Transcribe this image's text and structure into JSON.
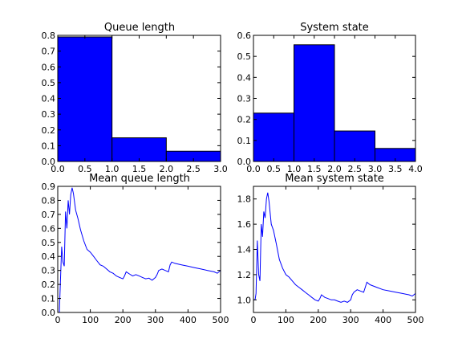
{
  "chart_data": [
    {
      "type": "bar",
      "title": "Queue length",
      "xlim": [
        0,
        3
      ],
      "ylim": [
        0,
        0.8
      ],
      "xticks": [
        "0.0",
        "0.5",
        "1.0",
        "1.5",
        "2.0",
        "2.5",
        "3.0"
      ],
      "yticks": [
        "0.0",
        "0.1",
        "0.2",
        "0.3",
        "0.4",
        "0.5",
        "0.6",
        "0.7",
        "0.8"
      ],
      "bins": [
        [
          0,
          1
        ],
        [
          1,
          2
        ],
        [
          2,
          3
        ]
      ],
      "values": [
        0.79,
        0.15,
        0.065
      ],
      "color": "#0000ff"
    },
    {
      "type": "bar",
      "title": "System state",
      "xlim": [
        0,
        4
      ],
      "ylim": [
        0,
        0.6
      ],
      "xticks": [
        "0.0",
        "0.5",
        "1.0",
        "1.5",
        "2.0",
        "2.5",
        "3.0",
        "3.5",
        "4.0"
      ],
      "yticks": [
        "0.0",
        "0.1",
        "0.2",
        "0.3",
        "0.4",
        "0.5",
        "0.6"
      ],
      "bins": [
        [
          0,
          1
        ],
        [
          1,
          2
        ],
        [
          2,
          3
        ],
        [
          3,
          4
        ]
      ],
      "values": [
        0.23,
        0.555,
        0.145,
        0.062
      ],
      "color": "#0000ff"
    },
    {
      "type": "line",
      "title": "Mean queue length",
      "xlim": [
        0,
        500
      ],
      "ylim": [
        0,
        0.9
      ],
      "xticks": [
        "0",
        "100",
        "200",
        "300",
        "400",
        "500"
      ],
      "yticks": [
        "0.0",
        "0.1",
        "0.2",
        "0.3",
        "0.4",
        "0.5",
        "0.6",
        "0.7",
        "0.8",
        "0.9"
      ],
      "color": "#0000ff",
      "x": [
        0,
        5,
        8,
        12,
        16,
        20,
        24,
        28,
        32,
        36,
        40,
        44,
        48,
        55,
        62,
        70,
        80,
        90,
        100,
        110,
        120,
        130,
        140,
        150,
        160,
        170,
        180,
        190,
        200,
        205,
        210,
        220,
        230,
        240,
        250,
        260,
        270,
        280,
        290,
        300,
        305,
        310,
        320,
        330,
        340,
        345,
        350,
        360,
        380,
        400,
        420,
        440,
        460,
        480,
        490,
        500
      ],
      "y": [
        0.0,
        0.0,
        0.2,
        0.47,
        0.36,
        0.33,
        0.72,
        0.6,
        0.8,
        0.7,
        0.84,
        0.89,
        0.85,
        0.73,
        0.67,
        0.59,
        0.51,
        0.45,
        0.43,
        0.4,
        0.37,
        0.34,
        0.33,
        0.31,
        0.29,
        0.28,
        0.26,
        0.25,
        0.24,
        0.26,
        0.29,
        0.275,
        0.26,
        0.27,
        0.26,
        0.25,
        0.24,
        0.245,
        0.23,
        0.25,
        0.27,
        0.3,
        0.31,
        0.3,
        0.29,
        0.34,
        0.36,
        0.35,
        0.34,
        0.33,
        0.32,
        0.31,
        0.3,
        0.29,
        0.28,
        0.3
      ]
    },
    {
      "type": "line",
      "title": "Mean system state",
      "xlim": [
        0,
        500
      ],
      "ylim": [
        0.9,
        1.9
      ],
      "xticks": [
        "0",
        "100",
        "200",
        "300",
        "400",
        "500"
      ],
      "yticks": [
        "1.0",
        "1.2",
        "1.4",
        "1.6",
        "1.8"
      ],
      "ytick_values": [
        1.0,
        1.2,
        1.4,
        1.6,
        1.8
      ],
      "color": "#0000ff",
      "x": [
        0,
        5,
        8,
        12,
        16,
        20,
        24,
        28,
        32,
        36,
        40,
        44,
        48,
        55,
        62,
        70,
        80,
        90,
        100,
        110,
        120,
        130,
        140,
        150,
        160,
        170,
        180,
        190,
        200,
        205,
        210,
        220,
        230,
        240,
        250,
        260,
        270,
        280,
        290,
        300,
        305,
        310,
        320,
        330,
        340,
        345,
        350,
        360,
        380,
        400,
        420,
        440,
        460,
        480,
        490,
        500
      ],
      "y": [
        1.0,
        1.0,
        1.05,
        1.47,
        1.2,
        1.15,
        1.6,
        1.5,
        1.7,
        1.65,
        1.8,
        1.85,
        1.78,
        1.6,
        1.55,
        1.45,
        1.32,
        1.25,
        1.2,
        1.18,
        1.15,
        1.12,
        1.1,
        1.08,
        1.06,
        1.04,
        1.02,
        1.0,
        0.99,
        1.01,
        1.04,
        1.02,
        1.01,
        1.0,
        1.0,
        0.99,
        0.98,
        0.99,
        0.98,
        1.0,
        1.04,
        1.06,
        1.08,
        1.07,
        1.06,
        1.1,
        1.14,
        1.12,
        1.1,
        1.08,
        1.07,
        1.06,
        1.05,
        1.04,
        1.03,
        1.05
      ]
    }
  ]
}
